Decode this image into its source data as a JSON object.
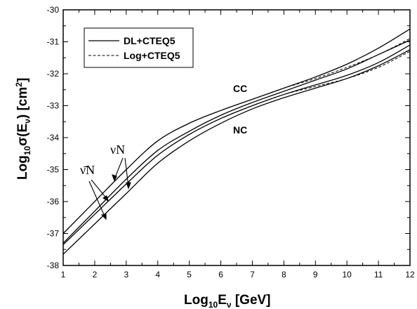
{
  "chart_data": {
    "type": "line",
    "xlabel": "Log10Eν  [GeV]",
    "ylabel": "Log10σ(Eν)  [cm2]",
    "xlim": [
      1,
      12
    ],
    "ylim": [
      -38,
      -30
    ],
    "xticks": [
      "1",
      "2",
      "3",
      "4",
      "5",
      "6",
      "7",
      "8",
      "9",
      "10",
      "11",
      "12"
    ],
    "yticks": [
      "-38",
      "-37",
      "-36",
      "-35",
      "-34",
      "-33",
      "-32",
      "-31",
      "-30"
    ],
    "grid": false,
    "legend": {
      "placement": "top-left",
      "entries": [
        {
          "label": "DL+CTEQ5",
          "style": "solid"
        },
        {
          "label": "Log+CTEQ5",
          "style": "dashed"
        }
      ]
    },
    "annotations": {
      "cc": "CC",
      "nc": "NC",
      "nu_label": "νN",
      "nubar_label": "ν̄N"
    },
    "series": [
      {
        "style": "solid",
        "x": [
          1,
          2,
          3,
          4,
          5,
          6,
          7,
          8,
          9,
          10,
          11,
          12
        ],
        "y": [
          -37.0,
          -36.0,
          -35.0,
          -34.1,
          -33.55,
          -33.15,
          -32.8,
          -32.45,
          -32.1,
          -31.7,
          -31.2,
          -30.6
        ]
      },
      {
        "style": "dashed",
        "x": [
          1,
          2,
          3,
          4,
          5,
          6,
          7,
          8,
          9,
          10,
          11,
          12
        ],
        "y": [
          -37.0,
          -36.0,
          -35.0,
          -34.1,
          -33.55,
          -33.15,
          -32.8,
          -32.45,
          -32.15,
          -31.8,
          -31.4,
          -30.9
        ]
      },
      {
        "style": "solid",
        "x": [
          1,
          2,
          3,
          4,
          5,
          6,
          7,
          8,
          9,
          10,
          11,
          12
        ],
        "y": [
          -37.3,
          -36.3,
          -35.3,
          -34.4,
          -33.8,
          -33.3,
          -32.9,
          -32.55,
          -32.2,
          -31.85,
          -31.4,
          -30.95
        ]
      },
      {
        "style": "solid",
        "x": [
          1,
          2,
          3,
          4,
          5,
          6,
          7,
          8,
          9,
          10,
          11,
          12
        ],
        "y": [
          -37.35,
          -36.4,
          -35.45,
          -34.55,
          -33.9,
          -33.4,
          -33.0,
          -32.65,
          -32.35,
          -32.05,
          -31.65,
          -31.1
        ]
      },
      {
        "style": "dashed",
        "x": [
          1,
          2,
          3,
          4,
          5,
          6,
          7,
          8,
          9,
          10,
          11,
          12
        ],
        "y": [
          -37.35,
          -36.4,
          -35.45,
          -34.55,
          -33.9,
          -33.4,
          -33.0,
          -32.65,
          -32.4,
          -32.15,
          -31.8,
          -31.3
        ]
      },
      {
        "style": "solid",
        "x": [
          1,
          2,
          3,
          4,
          5,
          6,
          7,
          8,
          9,
          10,
          11,
          12
        ],
        "y": [
          -37.65,
          -36.7,
          -35.75,
          -34.8,
          -34.1,
          -33.55,
          -33.1,
          -32.75,
          -32.45,
          -32.15,
          -31.75,
          -31.25
        ]
      }
    ]
  }
}
